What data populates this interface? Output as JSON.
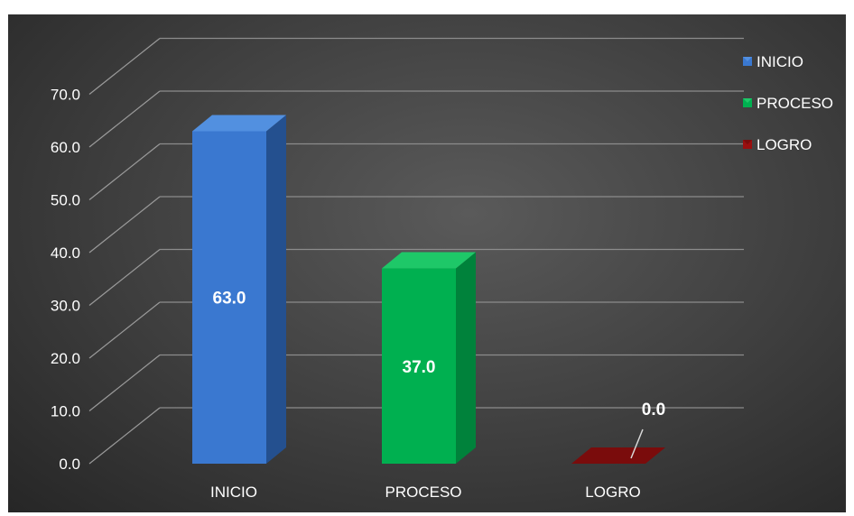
{
  "chart_data": {
    "type": "bar",
    "categories": [
      "INICIO",
      "PROCESO",
      "LOGRO"
    ],
    "values": [
      63.0,
      37.0,
      0.0
    ],
    "value_labels": [
      "63.0",
      "37.0",
      "0.0"
    ],
    "title": "",
    "xlabel": "",
    "ylabel": "",
    "ylim": [
      0,
      70
    ],
    "yticks": [
      "0.0",
      "10.0",
      "20.0",
      "30.0",
      "40.0",
      "50.0",
      "60.0",
      "70.0"
    ],
    "grid": true,
    "three_d": true,
    "legend": {
      "placement": "top-right",
      "entries": [
        "INICIO",
        "PROCESO",
        "LOGRO"
      ]
    },
    "colors": {
      "INICIO": {
        "front": "#3a78d0",
        "side": "#24508f",
        "top": "#5290e0"
      },
      "PROCESO": {
        "front": "#00b050",
        "side": "#00823b",
        "top": "#1ec868"
      },
      "LOGRO": {
        "front": "#9a0f0f",
        "side": "#660808",
        "top": "#7a0c0c"
      }
    },
    "background": "#3c3c3c"
  }
}
